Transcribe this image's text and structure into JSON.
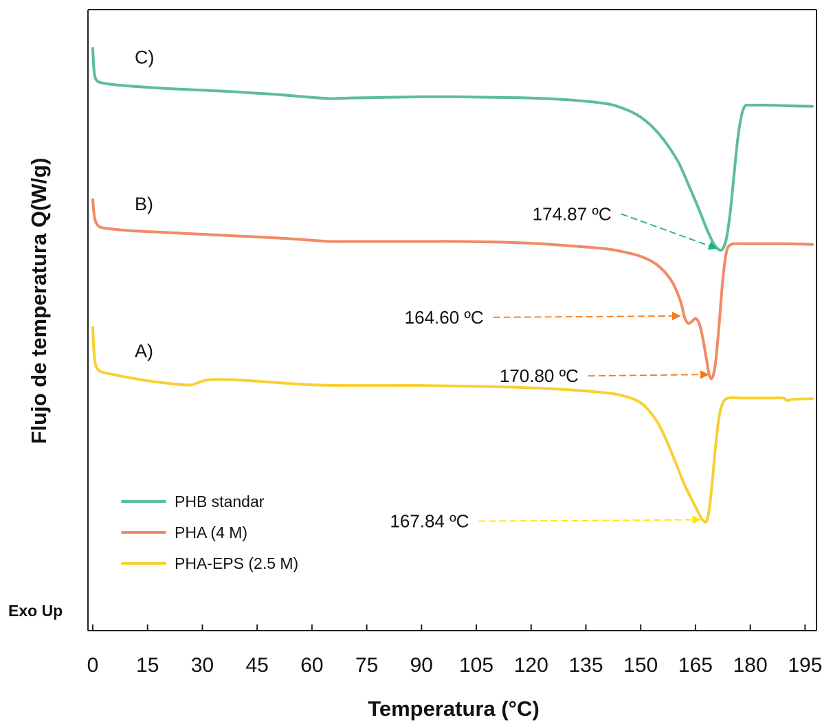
{
  "chart_data": {
    "type": "line",
    "xlabel": "Temperatura (°C)",
    "ylabel": "Flujo de temperatura Q(W/g)",
    "exo_label": "Exo Up",
    "x_ticks": [
      0,
      15,
      30,
      45,
      60,
      75,
      90,
      105,
      120,
      135,
      150,
      165,
      180,
      195
    ],
    "x_tick_labels": [
      "0",
      "15",
      "30",
      "45",
      "60",
      "75",
      "90",
      "105",
      "120",
      "135",
      "150",
      "165",
      "180",
      "195"
    ],
    "xlim": [
      0,
      197
    ],
    "y_axis": {
      "inverted_display": true,
      "ylim": [
        0,
        1
      ],
      "tick_labels_shown": false
    },
    "grid": false,
    "legend_position": "bottom-left",
    "panel_labels": [
      {
        "text": "C)",
        "series": 0
      },
      {
        "text": "B)",
        "series": 1
      },
      {
        "text": "A)",
        "series": 2
      }
    ],
    "series": [
      {
        "name": "PHB standar",
        "color": "#5dbe95",
        "points": [
          [
            0,
            0.035
          ],
          [
            0.2,
            0.06
          ],
          [
            0.5,
            0.08
          ],
          [
            1,
            0.088
          ],
          [
            2,
            0.092
          ],
          [
            5,
            0.095
          ],
          [
            10,
            0.098
          ],
          [
            20,
            0.102
          ],
          [
            30,
            0.105
          ],
          [
            40,
            0.108
          ],
          [
            50,
            0.112
          ],
          [
            60,
            0.117
          ],
          [
            65,
            0.119
          ],
          [
            70,
            0.118
          ],
          [
            80,
            0.117
          ],
          [
            90,
            0.116
          ],
          [
            100,
            0.116
          ],
          [
            110,
            0.117
          ],
          [
            120,
            0.118
          ],
          [
            130,
            0.121
          ],
          [
            140,
            0.127
          ],
          [
            145,
            0.135
          ],
          [
            150,
            0.15
          ],
          [
            155,
            0.178
          ],
          [
            160,
            0.222
          ],
          [
            163,
            0.262
          ],
          [
            166,
            0.305
          ],
          [
            168,
            0.336
          ],
          [
            170,
            0.362
          ],
          [
            171.5,
            0.372
          ],
          [
            172.5,
            0.37
          ],
          [
            173.5,
            0.352
          ],
          [
            174.5,
            0.31
          ],
          [
            175.5,
            0.25
          ],
          [
            176.5,
            0.19
          ],
          [
            177.5,
            0.15
          ],
          [
            178.5,
            0.132
          ],
          [
            180,
            0.13
          ],
          [
            185,
            0.13
          ],
          [
            190,
            0.131
          ],
          [
            197,
            0.132
          ]
        ]
      },
      {
        "name": "PHA (4 M)",
        "color": "#f18a66",
        "points": [
          [
            0,
            0.288
          ],
          [
            0.3,
            0.31
          ],
          [
            0.8,
            0.325
          ],
          [
            2,
            0.334
          ],
          [
            5,
            0.337
          ],
          [
            10,
            0.34
          ],
          [
            20,
            0.343
          ],
          [
            30,
            0.346
          ],
          [
            40,
            0.349
          ],
          [
            50,
            0.352
          ],
          [
            60,
            0.356
          ],
          [
            65,
            0.358
          ],
          [
            70,
            0.358
          ],
          [
            80,
            0.358
          ],
          [
            90,
            0.358
          ],
          [
            100,
            0.358
          ],
          [
            110,
            0.359
          ],
          [
            120,
            0.361
          ],
          [
            130,
            0.365
          ],
          [
            140,
            0.37
          ],
          [
            145,
            0.375
          ],
          [
            150,
            0.383
          ],
          [
            154,
            0.395
          ],
          [
            157,
            0.412
          ],
          [
            159,
            0.43
          ],
          [
            161,
            0.46
          ],
          [
            162,
            0.485
          ],
          [
            163,
            0.495
          ],
          [
            164,
            0.492
          ],
          [
            165,
            0.487
          ],
          [
            166,
            0.495
          ],
          [
            167,
            0.52
          ],
          [
            168,
            0.555
          ],
          [
            168.8,
            0.582
          ],
          [
            169.6,
            0.586
          ],
          [
            170.5,
            0.56
          ],
          [
            171.5,
            0.495
          ],
          [
            172.5,
            0.42
          ],
          [
            173.5,
            0.375
          ],
          [
            174.5,
            0.364
          ],
          [
            176,
            0.362
          ],
          [
            180,
            0.362
          ],
          [
            190,
            0.362
          ],
          [
            197,
            0.363
          ]
        ]
      },
      {
        "name": "PHA-EPS (2.5 M)",
        "color": "#f7d032",
        "points": [
          [
            0,
            0.502
          ],
          [
            0.3,
            0.54
          ],
          [
            0.8,
            0.565
          ],
          [
            2,
            0.575
          ],
          [
            5,
            0.58
          ],
          [
            10,
            0.586
          ],
          [
            15,
            0.591
          ],
          [
            20,
            0.595
          ],
          [
            25,
            0.598
          ],
          [
            27,
            0.598
          ],
          [
            29,
            0.594
          ],
          [
            31,
            0.59
          ],
          [
            35,
            0.589
          ],
          [
            40,
            0.59
          ],
          [
            50,
            0.594
          ],
          [
            60,
            0.598
          ],
          [
            70,
            0.599
          ],
          [
            80,
            0.599
          ],
          [
            90,
            0.599
          ],
          [
            100,
            0.6
          ],
          [
            110,
            0.601
          ],
          [
            120,
            0.603
          ],
          [
            130,
            0.606
          ],
          [
            140,
            0.611
          ],
          [
            145,
            0.616
          ],
          [
            150,
            0.628
          ],
          [
            154,
            0.655
          ],
          [
            157,
            0.69
          ],
          [
            160,
            0.735
          ],
          [
            162,
            0.765
          ],
          [
            164,
            0.79
          ],
          [
            165.5,
            0.808
          ],
          [
            166.5,
            0.82
          ],
          [
            167.3,
            0.826
          ],
          [
            168,
            0.826
          ],
          [
            168.8,
            0.805
          ],
          [
            169.6,
            0.76
          ],
          [
            170.5,
            0.7
          ],
          [
            171.5,
            0.65
          ],
          [
            172.5,
            0.628
          ],
          [
            174,
            0.62
          ],
          [
            178,
            0.62
          ],
          [
            185,
            0.62
          ],
          [
            189,
            0.62
          ],
          [
            190,
            0.624
          ],
          [
            192,
            0.622
          ],
          [
            197,
            0.621
          ]
        ]
      }
    ],
    "annotations": [
      {
        "text": "174.87 ºC",
        "target_x": 171.5,
        "target_y": 0.372,
        "label_x": 142,
        "label_y": 0.312,
        "color": "#17b08e"
      },
      {
        "text": "164.60 ºC",
        "target_x": 161.5,
        "target_y": 0.485,
        "label_x": 107,
        "label_y": 0.485,
        "color": "#f37b17"
      },
      {
        "text": "170.80 ºC",
        "target_x": 169.2,
        "target_y": 0.583,
        "label_x": 133,
        "label_y": 0.583,
        "color": "#f37b17"
      },
      {
        "text": "167.84 ºC",
        "target_x": 167.0,
        "target_y": 0.826,
        "label_x": 103,
        "label_y": 0.826,
        "color": "#ffe600"
      }
    ]
  }
}
